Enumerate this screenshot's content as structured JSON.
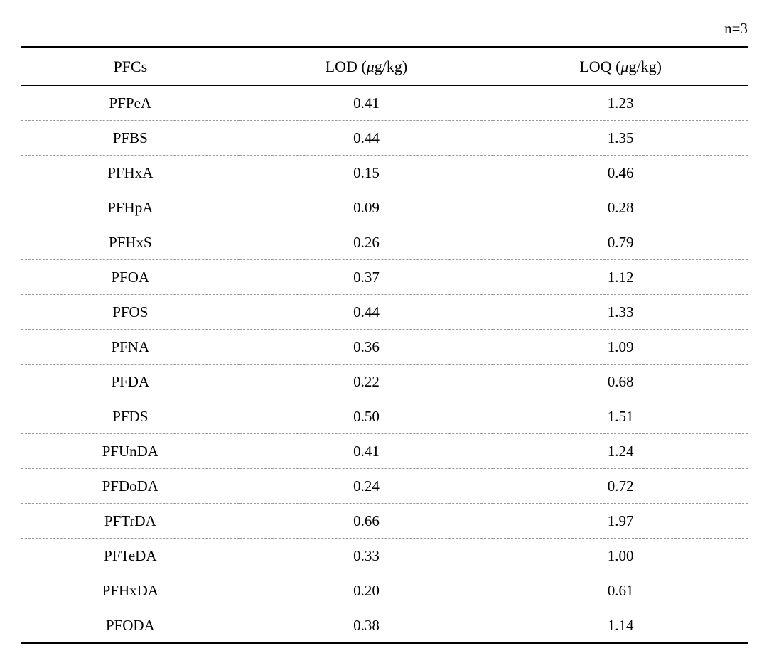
{
  "note": "n=3",
  "table": {
    "type": "table",
    "background_color": "#ffffff",
    "text_color": "#000000",
    "header_border_color": "#000000",
    "header_border_width": 2,
    "row_border_color": "#999999",
    "row_border_style": "dashed",
    "bottom_border_color": "#000000",
    "bottom_border_width": 2,
    "font_family": "Times New Roman / Georgia, serif",
    "header_fontsize": 22,
    "cell_fontsize": 21,
    "columns": [
      {
        "key": "pfcs",
        "label": "PFCs",
        "width_pct": 30
      },
      {
        "key": "lod",
        "label_prefix": "LOD (",
        "unit": "μ",
        "label_suffix": "g/kg)",
        "width_pct": 35
      },
      {
        "key": "loq",
        "label_prefix": "LOQ (",
        "unit": "μ",
        "label_suffix": "g/kg)",
        "width_pct": 35
      }
    ],
    "rows": [
      {
        "pfcs": "PFPeA",
        "lod": "0.41",
        "loq": "1.23"
      },
      {
        "pfcs": "PFBS",
        "lod": "0.44",
        "loq": "1.35"
      },
      {
        "pfcs": "PFHxA",
        "lod": "0.15",
        "loq": "0.46"
      },
      {
        "pfcs": "PFHpA",
        "lod": "0.09",
        "loq": "0.28"
      },
      {
        "pfcs": "PFHxS",
        "lod": "0.26",
        "loq": "0.79"
      },
      {
        "pfcs": "PFOA",
        "lod": "0.37",
        "loq": "1.12"
      },
      {
        "pfcs": "PFOS",
        "lod": "0.44",
        "loq": "1.33"
      },
      {
        "pfcs": "PFNA",
        "lod": "0.36",
        "loq": "1.09"
      },
      {
        "pfcs": "PFDA",
        "lod": "0.22",
        "loq": "0.68"
      },
      {
        "pfcs": "PFDS",
        "lod": "0.50",
        "loq": "1.51"
      },
      {
        "pfcs": "PFUnDA",
        "lod": "0.41",
        "loq": "1.24"
      },
      {
        "pfcs": "PFDoDA",
        "lod": "0.24",
        "loq": "0.72"
      },
      {
        "pfcs": "PFTrDA",
        "lod": "0.66",
        "loq": "1.97"
      },
      {
        "pfcs": "PFTeDA",
        "lod": "0.33",
        "loq": "1.00"
      },
      {
        "pfcs": "PFHxDA",
        "lod": "0.20",
        "loq": "0.61"
      },
      {
        "pfcs": "PFODA",
        "lod": "0.38",
        "loq": "1.14"
      }
    ]
  }
}
